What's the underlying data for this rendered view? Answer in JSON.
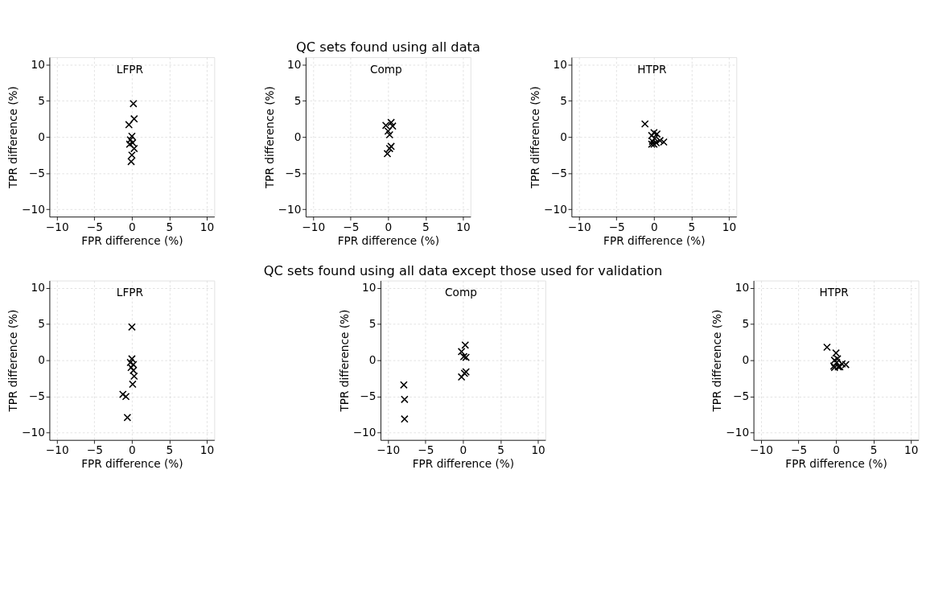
{
  "chart_data": [
    {
      "type": "scatter",
      "title": "LFPR",
      "xlabel": "FPR difference (%)",
      "ylabel": "TPR difference (%)",
      "xlim": [
        -11,
        11
      ],
      "ylim": [
        -11,
        11
      ],
      "xticks": [
        -10,
        -5,
        0,
        5,
        10
      ],
      "yticks": [
        -10,
        -5,
        0,
        5,
        10
      ],
      "grid": true,
      "marker": "cross",
      "series": [
        {
          "color": "#000000",
          "x": [
            0.2,
            0.3,
            -0.4,
            0,
            -0.2,
            0.1,
            -0.3,
            0.3,
            0,
            -0.1
          ],
          "values": [
            4.6,
            2.5,
            1.7,
            0.1,
            -0.4,
            -0.8,
            -1,
            -1.6,
            -2.5,
            -3.4
          ]
        }
      ]
    },
    {
      "type": "scatter",
      "subtitle": "QC sets found using all data",
      "title": "Comp",
      "xlabel": "FPR difference (%)",
      "ylabel": "TPR difference (%)",
      "xlim": [
        -11,
        11
      ],
      "ylim": [
        -11,
        11
      ],
      "xticks": [
        -10,
        -5,
        0,
        5,
        10
      ],
      "yticks": [
        -10,
        -5,
        0,
        5,
        10
      ],
      "grid": true,
      "marker": "cross",
      "series": [
        {
          "color": "#000000",
          "x": [
            -0.3,
            0.4,
            0.6,
            0,
            0.2,
            0.4,
            0.2,
            -0.1
          ],
          "values": [
            1.6,
            2,
            1.5,
            0.8,
            0.3,
            -1.3,
            -1.6,
            -2.3
          ]
        }
      ]
    },
    {
      "type": "scatter",
      "title": "HTPR",
      "xlabel": "FPR difference (%)",
      "ylabel": "TPR difference (%)",
      "xlim": [
        -11,
        11
      ],
      "ylim": [
        -11,
        11
      ],
      "xticks": [
        -10,
        -5,
        0,
        5,
        10
      ],
      "yticks": [
        -10,
        -5,
        0,
        5,
        10
      ],
      "grid": true,
      "marker": "cross",
      "series": [
        {
          "color": "#000000",
          "x": [
            -1.2,
            0,
            -0.3,
            0.4,
            0.1,
            -0.2,
            0.3,
            0.8,
            1.3,
            -0.3,
            0
          ],
          "values": [
            1.8,
            0.6,
            0.2,
            0.4,
            -0.2,
            -0.6,
            -0.8,
            -0.5,
            -0.7,
            -1,
            -1
          ]
        }
      ]
    },
    {
      "type": "scatter",
      "title": "LFPR",
      "xlabel": "FPR difference (%)",
      "ylabel": "TPR difference (%)",
      "xlim": [
        -11,
        11
      ],
      "ylim": [
        -11,
        11
      ],
      "xticks": [
        -10,
        -5,
        0,
        5,
        10
      ],
      "yticks": [
        -10,
        -5,
        0,
        5,
        10
      ],
      "grid": true,
      "marker": "cross",
      "series": [
        {
          "color": "#000000",
          "x": [
            0,
            0,
            -0.2,
            0.2,
            -0.1,
            0.2,
            0.3,
            0.1,
            -1.2,
            -0.8,
            -0.6
          ],
          "values": [
            4.6,
            0.2,
            -0.3,
            -0.6,
            -1,
            -1.4,
            -2.2,
            -3.3,
            -4.7,
            -5,
            -7.9
          ]
        }
      ]
    },
    {
      "type": "scatter",
      "subtitle": "QC sets found using all data except those used for validation",
      "title": "Comp",
      "xlabel": "FPR difference (%)",
      "ylabel": "TPR difference (%)",
      "xlim": [
        -11,
        11
      ],
      "ylim": [
        -11,
        11
      ],
      "xticks": [
        -10,
        -5,
        0,
        5,
        10
      ],
      "yticks": [
        -10,
        -5,
        0,
        5,
        10
      ],
      "grid": true,
      "marker": "cross",
      "series": [
        {
          "color": "#000000",
          "x": [
            -7.9,
            -7.8,
            -7.8,
            0.3,
            -0.2,
            0.1,
            0.4,
            0.4,
            0.2,
            -0.2
          ],
          "values": [
            -3.4,
            -5.4,
            -8.1,
            2.1,
            1.2,
            0.5,
            0.4,
            -1.6,
            -1.8,
            -2.3
          ]
        }
      ]
    },
    {
      "type": "scatter",
      "title": "HTPR",
      "xlabel": "FPR difference (%)",
      "ylabel": "TPR difference (%)",
      "xlim": [
        -11,
        11
      ],
      "ylim": [
        -11,
        11
      ],
      "xticks": [
        -10,
        -5,
        0,
        5,
        10
      ],
      "yticks": [
        -10,
        -5,
        0,
        5,
        10
      ],
      "grid": true,
      "marker": "cross",
      "series": [
        {
          "color": "#000000",
          "x": [
            -1.2,
            0,
            0.2,
            -0.2,
            0.1,
            -0.3,
            0.3,
            0.8,
            1.3,
            -0.2,
            0.5
          ],
          "values": [
            1.8,
            1,
            0.2,
            0,
            -0.3,
            -0.8,
            -0.9,
            -0.5,
            -0.6,
            -1,
            -0.9
          ]
        }
      ]
    }
  ]
}
